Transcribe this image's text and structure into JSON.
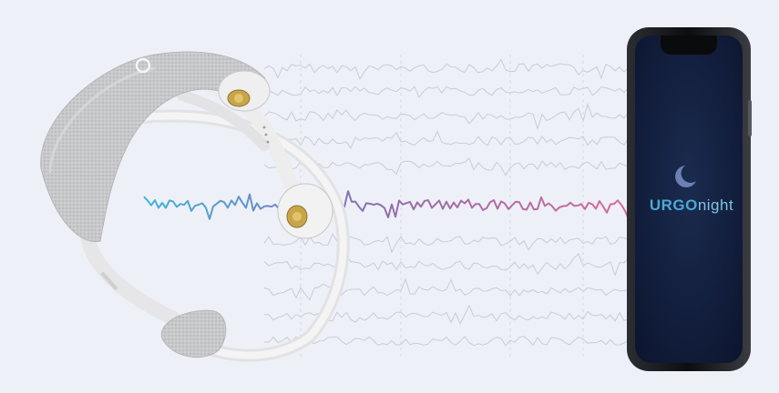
{
  "app": {
    "brand_bold": "URGO",
    "brand_light": "night"
  },
  "colors": {
    "background": "#eef0f7",
    "eeg_trace": "#c9ccd3",
    "wave_start": "#3fb4dc",
    "wave_mid": "#8a6fb0",
    "wave_end": "#d66a9a",
    "phone_screen": "#12213f",
    "brand_blue": "#4aa9d6",
    "moon": "#6e7fb3"
  },
  "icons": {
    "moon": "crescent-moon-icon"
  }
}
